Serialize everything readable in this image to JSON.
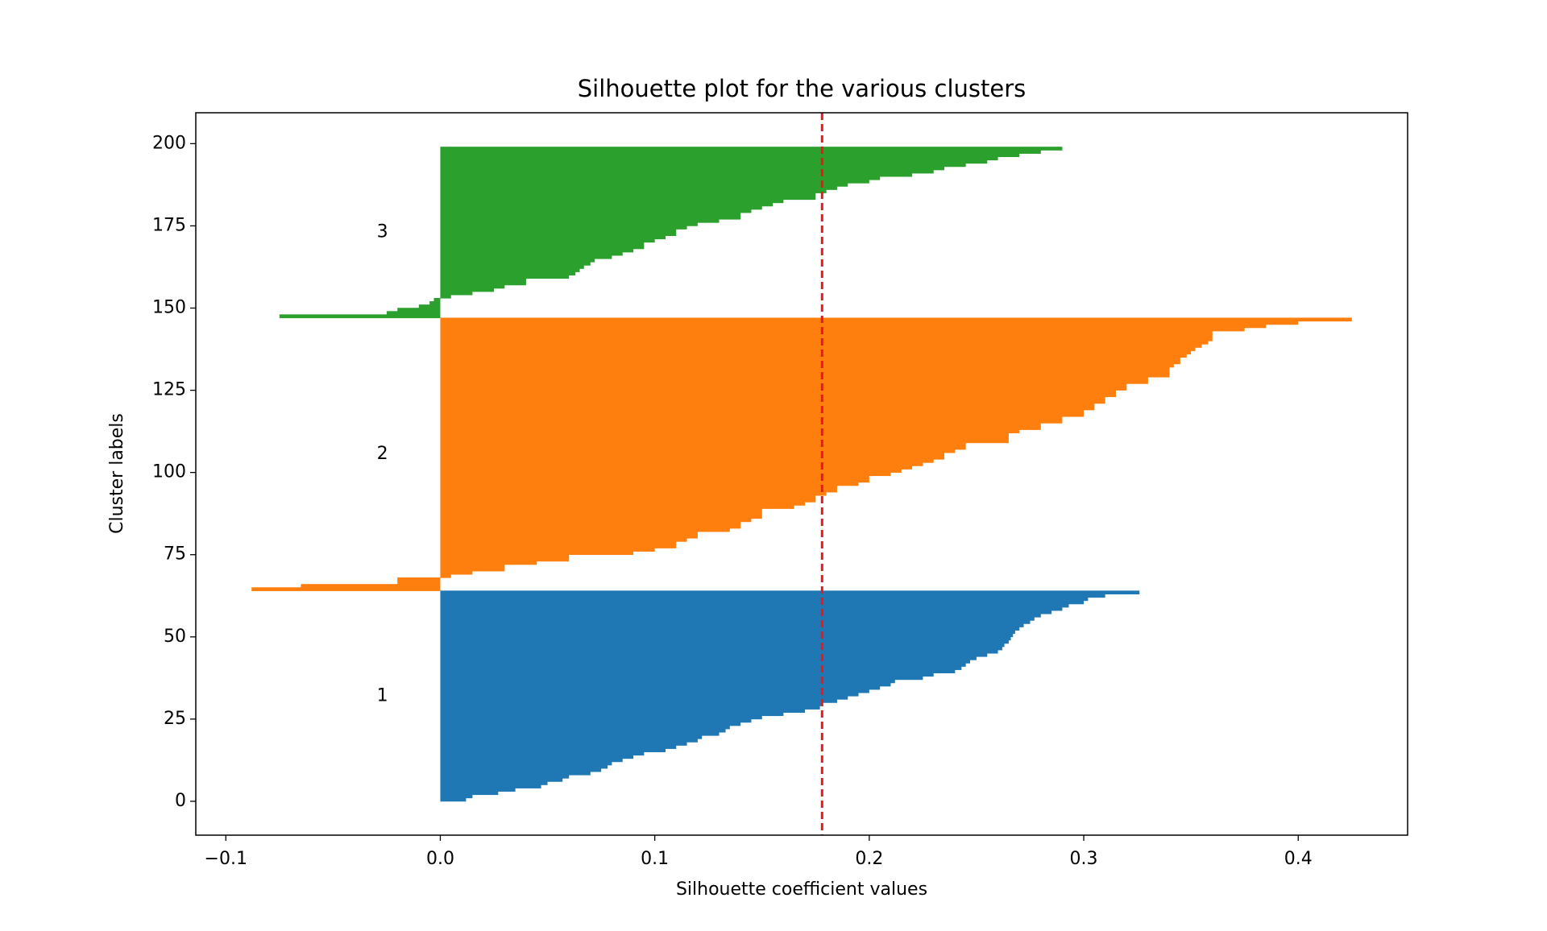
{
  "chart_data": {
    "type": "silhouette",
    "title": "Silhouette plot for the various clusters",
    "x_label": "Silhouette coefficient values",
    "y_label": "Cluster labels",
    "xlim": [
      -0.114,
      0.451
    ],
    "ylim": [
      -10.3,
      209.4
    ],
    "xticks": [
      {
        "value": -0.1,
        "label": "−0.1"
      },
      {
        "value": 0,
        "label": "0.0"
      },
      0.1,
      0.2,
      0.3,
      0.4
    ],
    "yticks": [
      0,
      25,
      50,
      75,
      100,
      125,
      150,
      175,
      200
    ],
    "mean_line": 0.178,
    "mean_line_color": "#e41a1c",
    "series": [
      {
        "name": "1",
        "color": "#1f77b4",
        "y_start": 0,
        "values": [
          0.012,
          0.015,
          0.027,
          0.035,
          0.047,
          0.05,
          0.057,
          0.06,
          0.07,
          0.075,
          0.078,
          0.08,
          0.085,
          0.09,
          0.095,
          0.105,
          0.11,
          0.115,
          0.12,
          0.122,
          0.13,
          0.133,
          0.135,
          0.14,
          0.145,
          0.15,
          0.16,
          0.17,
          0.177,
          0.178,
          0.185,
          0.19,
          0.195,
          0.2,
          0.205,
          0.21,
          0.212,
          0.225,
          0.23,
          0.24,
          0.243,
          0.245,
          0.247,
          0.25,
          0.255,
          0.26,
          0.262,
          0.263,
          0.265,
          0.266,
          0.267,
          0.268,
          0.27,
          0.272,
          0.275,
          0.277,
          0.28,
          0.285,
          0.29,
          0.293,
          0.3,
          0.302,
          0.31,
          0.326
        ]
      },
      {
        "name": "2",
        "color": "#ff7f0e",
        "y_start": 64,
        "values": [
          -0.088,
          -0.065,
          -0.02,
          -0.02,
          0.005,
          0.015,
          0.03,
          0.03,
          0.045,
          0.06,
          0.06,
          0.09,
          0.1,
          0.11,
          0.11,
          0.115,
          0.12,
          0.12,
          0.135,
          0.14,
          0.14,
          0.145,
          0.15,
          0.15,
          0.15,
          0.165,
          0.17,
          0.175,
          0.175,
          0.18,
          0.185,
          0.185,
          0.195,
          0.2,
          0.2,
          0.21,
          0.215,
          0.22,
          0.225,
          0.23,
          0.235,
          0.235,
          0.24,
          0.245,
          0.245,
          0.265,
          0.265,
          0.265,
          0.27,
          0.28,
          0.28,
          0.29,
          0.29,
          0.3,
          0.3,
          0.305,
          0.305,
          0.31,
          0.31,
          0.315,
          0.315,
          0.32,
          0.32,
          0.33,
          0.33,
          0.34,
          0.34,
          0.34,
          0.342,
          0.345,
          0.345,
          0.348,
          0.35,
          0.352,
          0.355,
          0.358,
          0.36,
          0.36,
          0.36,
          0.375,
          0.385,
          0.4,
          0.425
        ]
      },
      {
        "name": "3",
        "color": "#2ca02c",
        "y_start": 147,
        "values": [
          -0.075,
          -0.025,
          -0.02,
          -0.01,
          -0.005,
          -0.003,
          0.005,
          0.015,
          0.025,
          0.03,
          0.04,
          0.04,
          0.06,
          0.063,
          0.065,
          0.067,
          0.07,
          0.072,
          0.08,
          0.085,
          0.09,
          0.095,
          0.095,
          0.1,
          0.105,
          0.11,
          0.11,
          0.115,
          0.12,
          0.13,
          0.14,
          0.14,
          0.145,
          0.15,
          0.155,
          0.16,
          0.175,
          0.175,
          0.18,
          0.185,
          0.19,
          0.2,
          0.205,
          0.22,
          0.23,
          0.235,
          0.245,
          0.255,
          0.26,
          0.27,
          0.28,
          0.29
        ]
      }
    ]
  }
}
